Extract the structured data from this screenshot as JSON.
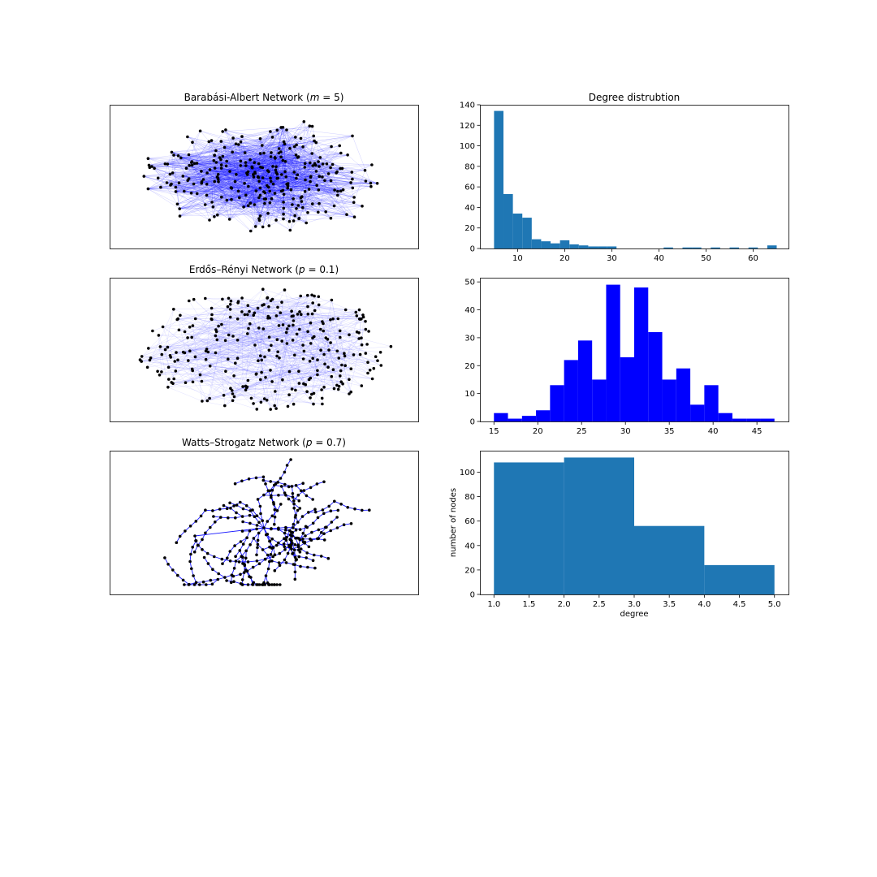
{
  "figure": {
    "panels": [
      {
        "title_pre": "Barabási-Albert Network (",
        "param": "m",
        "param_value": " = 5",
        "title_post": ")"
      },
      {
        "title_pre": "Erdős–Rényi Network (",
        "param": "p",
        "param_value": " = 0.1",
        "title_post": ")"
      },
      {
        "title_pre": "Watts–Strogatz Network (",
        "param": "p",
        "param_value": " = 0.7",
        "title_post": ")"
      }
    ]
  },
  "chart_data": [
    {
      "type": "network",
      "title": "Barabási-Albert Network (m = 5)",
      "nodes": 300,
      "node_color": "#000000",
      "edge_color": "#0000ff"
    },
    {
      "type": "bar",
      "title": "Degree distrubtion",
      "color": "#1f77b4",
      "bins": [
        {
          "x0": 5.0,
          "x1": 7.0,
          "count": 134
        },
        {
          "x0": 7.0,
          "x1": 9.0,
          "count": 53
        },
        {
          "x0": 9.0,
          "x1": 11.0,
          "count": 34
        },
        {
          "x0": 11.0,
          "x1": 13.0,
          "count": 30
        },
        {
          "x0": 13.0,
          "x1": 15.0,
          "count": 9
        },
        {
          "x0": 15.0,
          "x1": 17.0,
          "count": 7
        },
        {
          "x0": 17.0,
          "x1": 19.0,
          "count": 5
        },
        {
          "x0": 19.0,
          "x1": 21.0,
          "count": 8
        },
        {
          "x0": 21.0,
          "x1": 23.0,
          "count": 4
        },
        {
          "x0": 23.0,
          "x1": 25.0,
          "count": 3
        },
        {
          "x0": 25.0,
          "x1": 27.0,
          "count": 2
        },
        {
          "x0": 27.0,
          "x1": 29.0,
          "count": 2
        },
        {
          "x0": 29.0,
          "x1": 31.0,
          "count": 2
        },
        {
          "x0": 41.0,
          "x1": 43.0,
          "count": 1
        },
        {
          "x0": 45.0,
          "x1": 47.0,
          "count": 1
        },
        {
          "x0": 47.0,
          "x1": 49.0,
          "count": 1
        },
        {
          "x0": 51.0,
          "x1": 53.0,
          "count": 1
        },
        {
          "x0": 55.0,
          "x1": 57.0,
          "count": 1
        },
        {
          "x0": 59.0,
          "x1": 61.0,
          "count": 1
        },
        {
          "x0": 63.0,
          "x1": 65.0,
          "count": 3
        }
      ],
      "xlim": [
        2.0,
        67.5
      ],
      "ylim": [
        0,
        140
      ],
      "xticks": [
        10,
        20,
        30,
        40,
        50,
        60
      ],
      "yticks": [
        0,
        20,
        40,
        60,
        80,
        100,
        120,
        140
      ],
      "xlabel": "",
      "ylabel": ""
    },
    {
      "type": "network",
      "title": "Erdős–Rényi Network (p = 0.1)",
      "nodes": 300,
      "node_color": "#000000",
      "edge_color": "#0000ff"
    },
    {
      "type": "bar",
      "title": "",
      "color": "#0000ff",
      "bins": [
        {
          "x0": 15.0,
          "x1": 16.6,
          "count": 3
        },
        {
          "x0": 16.6,
          "x1": 18.2,
          "count": 1
        },
        {
          "x0": 18.2,
          "x1": 19.8,
          "count": 2
        },
        {
          "x0": 19.8,
          "x1": 21.4,
          "count": 4
        },
        {
          "x0": 21.4,
          "x1": 23.0,
          "count": 13
        },
        {
          "x0": 23.0,
          "x1": 24.6,
          "count": 22
        },
        {
          "x0": 24.6,
          "x1": 26.2,
          "count": 29
        },
        {
          "x0": 26.2,
          "x1": 27.8,
          "count": 15
        },
        {
          "x0": 27.8,
          "x1": 29.4,
          "count": 49
        },
        {
          "x0": 29.4,
          "x1": 31.0,
          "count": 23
        },
        {
          "x0": 31.0,
          "x1": 32.6,
          "count": 48
        },
        {
          "x0": 32.6,
          "x1": 34.2,
          "count": 32
        },
        {
          "x0": 34.2,
          "x1": 35.8,
          "count": 15
        },
        {
          "x0": 35.8,
          "x1": 37.4,
          "count": 19
        },
        {
          "x0": 37.4,
          "x1": 39.0,
          "count": 6
        },
        {
          "x0": 39.0,
          "x1": 40.6,
          "count": 13
        },
        {
          "x0": 40.6,
          "x1": 42.2,
          "count": 3
        },
        {
          "x0": 42.2,
          "x1": 43.8,
          "count": 1
        },
        {
          "x0": 43.8,
          "x1": 45.4,
          "count": 1
        },
        {
          "x0": 45.4,
          "x1": 47.0,
          "count": 1
        }
      ],
      "xlim": [
        13.4,
        48.6
      ],
      "ylim": [
        0,
        51.5
      ],
      "xticks": [
        15,
        20,
        25,
        30,
        35,
        40,
        45
      ],
      "yticks": [
        0,
        10,
        20,
        30,
        40,
        50
      ],
      "xlabel": "",
      "ylabel": ""
    },
    {
      "type": "network",
      "title": "Watts–Strogatz Network (p = 0.7)",
      "nodes": 300,
      "node_color": "#000000",
      "edge_color": "#0000ff"
    },
    {
      "type": "bar",
      "title": "",
      "color": "#1f77b4",
      "bins": [
        {
          "x0": 1.0,
          "x1": 2.0,
          "count": 108
        },
        {
          "x0": 2.0,
          "x1": 3.0,
          "count": 112
        },
        {
          "x0": 3.0,
          "x1": 4.0,
          "count": 56
        },
        {
          "x0": 4.0,
          "x1": 5.0,
          "count": 24
        }
      ],
      "xlim": [
        0.8,
        5.2
      ],
      "ylim": [
        0,
        117.6
      ],
      "xticks": [
        1.0,
        1.5,
        2.0,
        2.5,
        3.0,
        3.5,
        4.0,
        4.5,
        5.0
      ],
      "yticks": [
        0,
        20,
        40,
        60,
        80,
        100
      ],
      "xlabel": "degree",
      "ylabel": "number of nodes"
    }
  ]
}
